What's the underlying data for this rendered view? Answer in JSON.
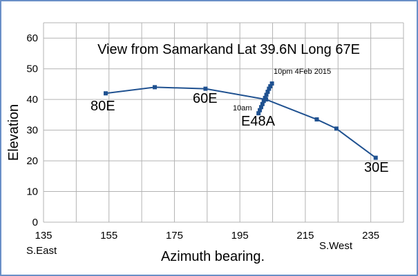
{
  "chart_data": {
    "type": "line",
    "title": "View from Samarkand Lat 39.6N Long 67E",
    "xlabel": "Azimuth bearing.",
    "ylabel": "Elevation",
    "xlim": [
      135,
      245
    ],
    "ylim": [
      0,
      65
    ],
    "xticks": [
      135,
      155,
      175,
      195,
      215,
      235
    ],
    "yticks": [
      0,
      10,
      20,
      30,
      40,
      50,
      60
    ],
    "grid": true,
    "series": [
      {
        "values": [
          {
            "x": 154,
            "y": 42
          },
          {
            "x": 169,
            "y": 44
          },
          {
            "x": 184.5,
            "y": 43.5
          },
          {
            "x": 203,
            "y": 40
          },
          {
            "x": 218.5,
            "y": 33.5
          },
          {
            "x": 224.5,
            "y": 30.5
          },
          {
            "x": 236.5,
            "y": 21
          }
        ]
      },
      {
        "values": [
          {
            "x": 200.7,
            "y": 35.5
          },
          {
            "x": 201.1,
            "y": 36.5
          },
          {
            "x": 201.5,
            "y": 37.5
          },
          {
            "x": 201.9,
            "y": 38.5
          },
          {
            "x": 202.3,
            "y": 39.5
          },
          {
            "x": 202.7,
            "y": 40.5
          },
          {
            "x": 203.1,
            "y": 41.5
          },
          {
            "x": 203.5,
            "y": 42.5
          },
          {
            "x": 203.9,
            "y": 43.5
          },
          {
            "x": 204.3,
            "y": 44.3
          },
          {
            "x": 204.8,
            "y": 45.2
          }
        ]
      }
    ],
    "annotations": {
      "a80e": "80E",
      "a60e": "60E",
      "ae48a": "E48A",
      "a30e": "30E",
      "a10am": "10am",
      "a10pm": "10pm 4Feb 2015",
      "southeast": "S.East",
      "southwest": "S.West"
    },
    "colors": {
      "line": "#1f5190",
      "grid": "#b3b3b3"
    }
  }
}
